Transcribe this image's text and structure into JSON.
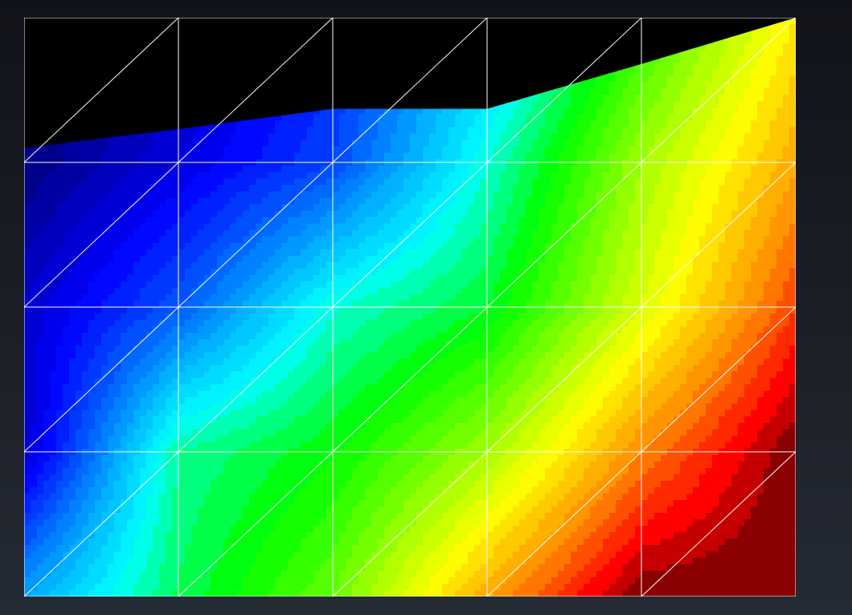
{
  "viewport": {
    "background": "#1a1e26",
    "grid_line_color": "#ffffff",
    "empty_region_color": "#000000"
  },
  "mesh": {
    "columns": 5,
    "rows": 4,
    "element_type": "triangle",
    "diagonal_direction": "bottom-left-to-top-right",
    "vertex_values": [
      [
        0.3,
        0.48,
        0.6,
        0.82,
        1.0,
        1.0
      ],
      [
        0.08,
        0.45,
        0.52,
        0.65,
        0.85,
        1.0
      ],
      [
        0.08,
        0.22,
        0.42,
        0.5,
        0.7,
        0.9
      ],
      [
        0.0,
        0.1,
        0.2,
        0.42,
        0.65,
        0.82
      ],
      [
        0.0,
        0.04,
        0.16,
        0.32,
        0.55,
        0.75
      ]
    ],
    "top_edge_fill_fraction": [
      0.1,
      0.23,
      0.37,
      0.37,
      0.68,
      1.0
    ]
  },
  "colormap": {
    "name": "rainbow",
    "levels": 40,
    "stops": [
      {
        "value": 0.0,
        "color": "#00008b"
      },
      {
        "value": 0.12,
        "color": "#0000ff"
      },
      {
        "value": 0.3,
        "color": "#00aaff"
      },
      {
        "value": 0.4,
        "color": "#00ffff"
      },
      {
        "value": 0.52,
        "color": "#00ff00"
      },
      {
        "value": 0.66,
        "color": "#aaff00"
      },
      {
        "value": 0.74,
        "color": "#ffff00"
      },
      {
        "value": 0.86,
        "color": "#ff8800"
      },
      {
        "value": 0.95,
        "color": "#ff0000"
      },
      {
        "value": 1.0,
        "color": "#8b0000"
      }
    ]
  }
}
